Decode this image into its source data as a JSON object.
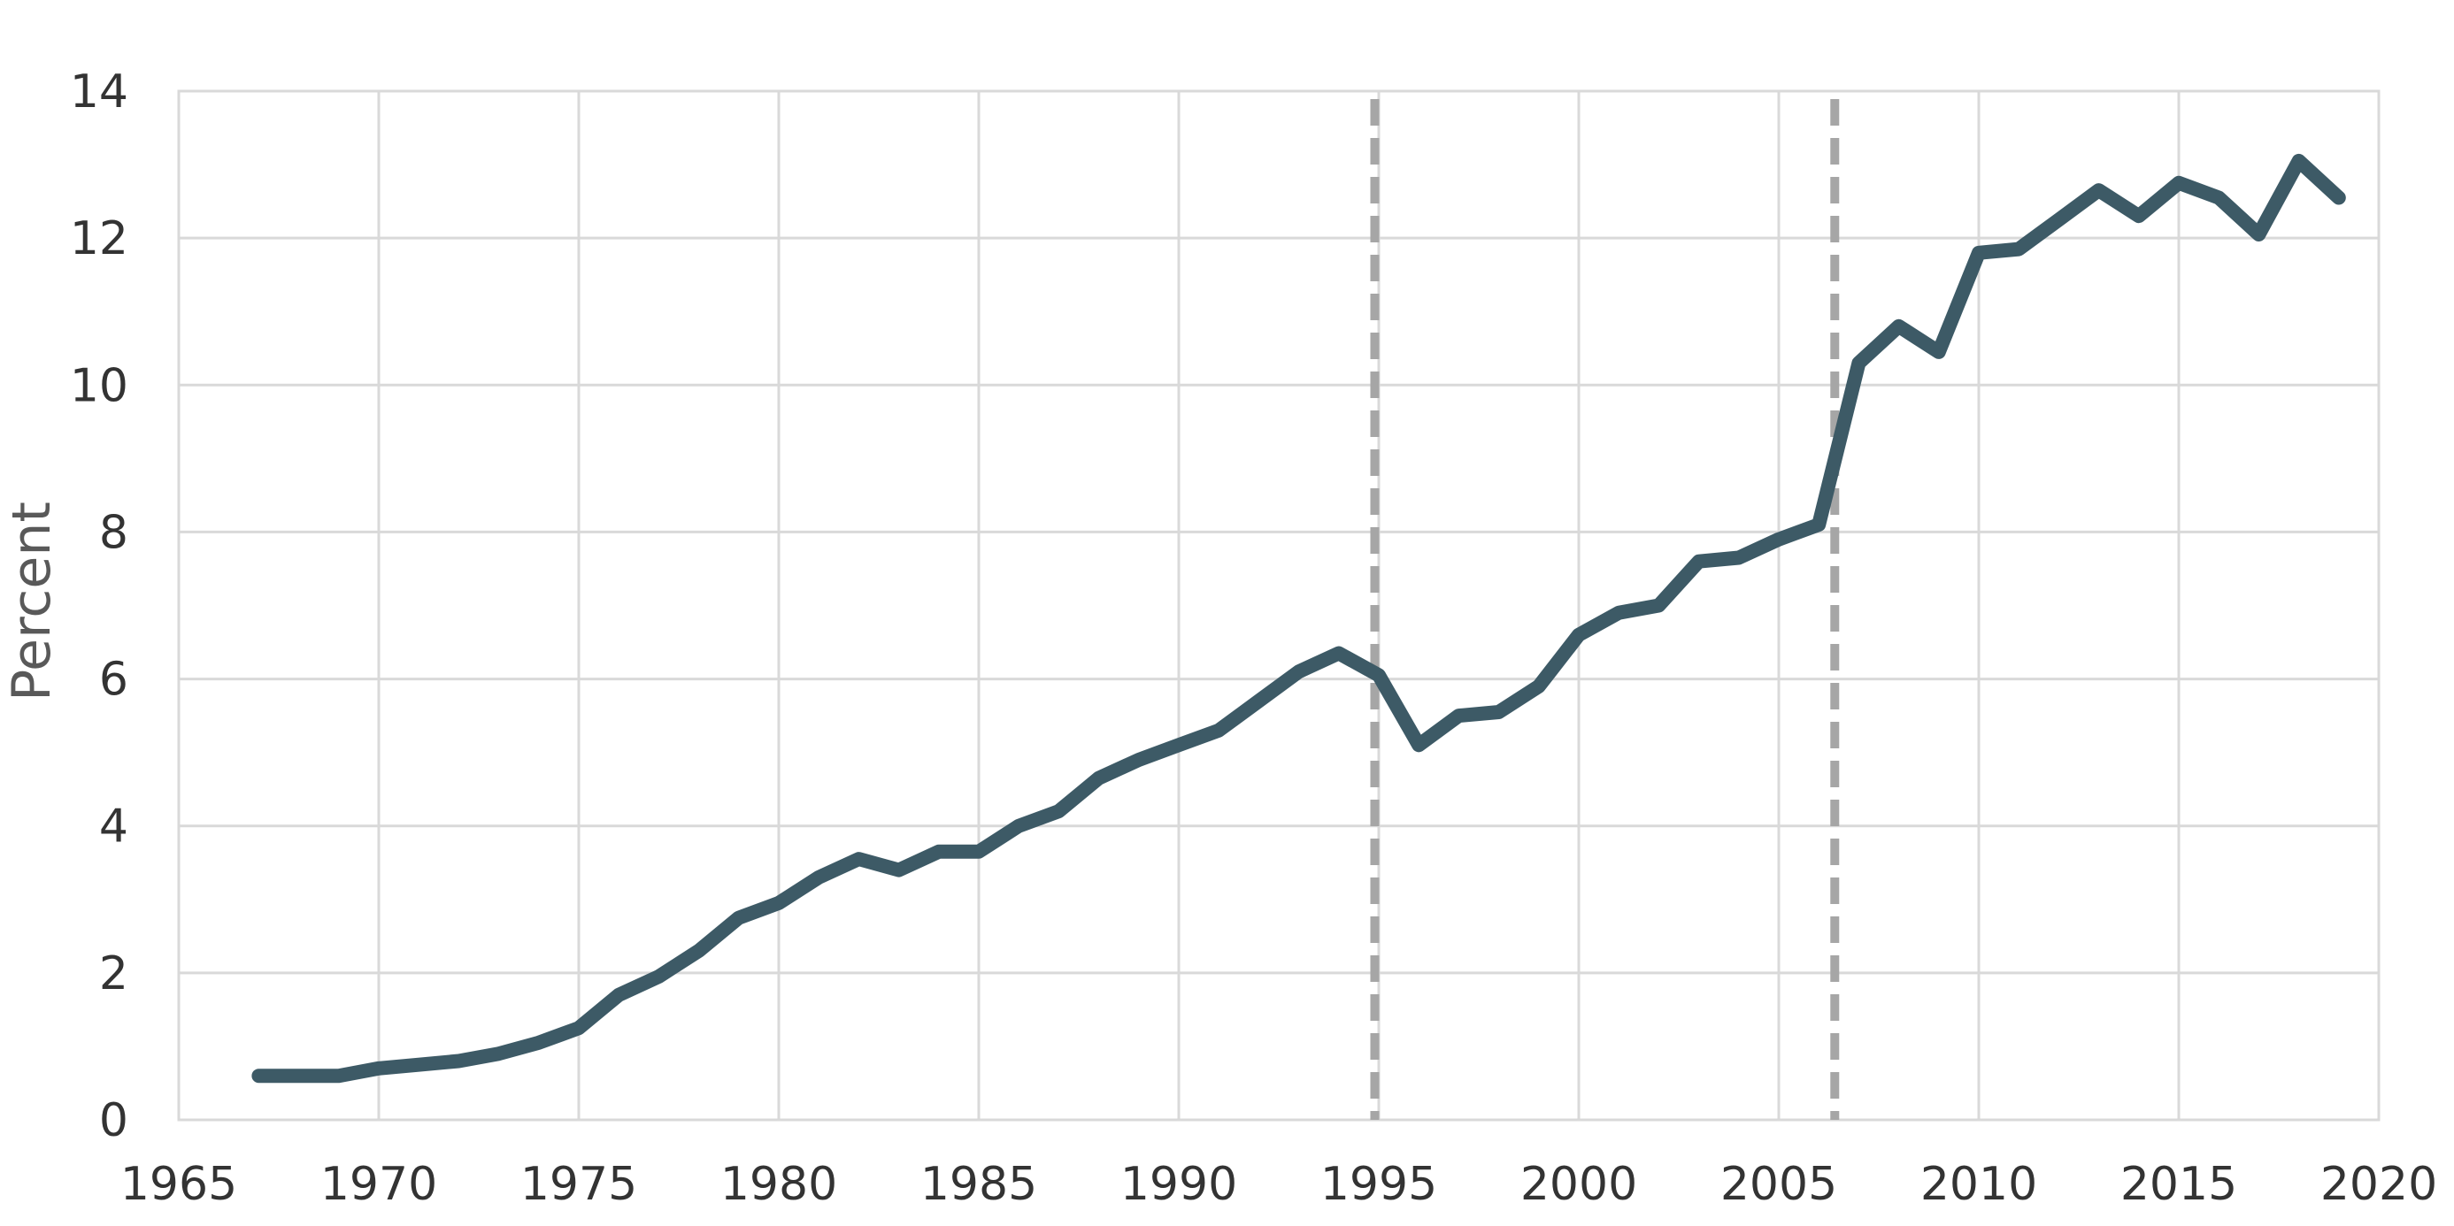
{
  "chart_data": {
    "type": "line",
    "title": "",
    "xlabel": "",
    "ylabel": "Percent",
    "xlim": [
      1965,
      2020
    ],
    "ylim": [
      0,
      14
    ],
    "x_ticks": [
      1965,
      1970,
      1975,
      1980,
      1985,
      1990,
      1995,
      2000,
      2005,
      2010,
      2015,
      2020
    ],
    "y_ticks": [
      0,
      2,
      4,
      6,
      8,
      10,
      12,
      14
    ],
    "grid": true,
    "legend": "none",
    "reference_lines_x": [
      1994.9,
      2006.4
    ],
    "colors": {
      "series": "#3d5a66",
      "reference": "#a6a6a6",
      "grid": "#d9d9d9"
    },
    "series": [
      {
        "x": [
          1967,
          1968,
          1969,
          1970,
          1971,
          1972,
          1973,
          1974,
          1975,
          1976,
          1977,
          1978,
          1979,
          1980,
          1981,
          1982,
          1983,
          1984,
          1985,
          1986,
          1987,
          1988,
          1989,
          1990,
          1991,
          1992,
          1993,
          1994,
          1995,
          1996,
          1997,
          1998,
          1999,
          2000,
          2001,
          2002,
          2003,
          2004,
          2005,
          2006,
          2007,
          2008,
          2009,
          2010,
          2011,
          2012,
          2013,
          2014,
          2015,
          2016,
          2017,
          2018,
          2019
        ],
        "values": [
          0.6,
          0.6,
          0.6,
          0.7,
          0.75,
          0.8,
          0.9,
          1.05,
          1.25,
          1.7,
          1.95,
          2.3,
          2.75,
          2.95,
          3.3,
          3.55,
          3.4,
          3.65,
          3.65,
          4.0,
          4.2,
          4.65,
          4.9,
          5.1,
          5.3,
          5.7,
          6.1,
          6.35,
          6.05,
          5.1,
          5.5,
          5.55,
          5.9,
          6.6,
          6.9,
          7.0,
          7.6,
          7.65,
          7.9,
          8.1,
          10.3,
          10.8,
          10.45,
          11.8,
          11.85,
          12.25,
          12.65,
          12.3,
          12.75,
          12.55,
          12.05,
          13.05,
          12.55
        ]
      }
    ]
  }
}
